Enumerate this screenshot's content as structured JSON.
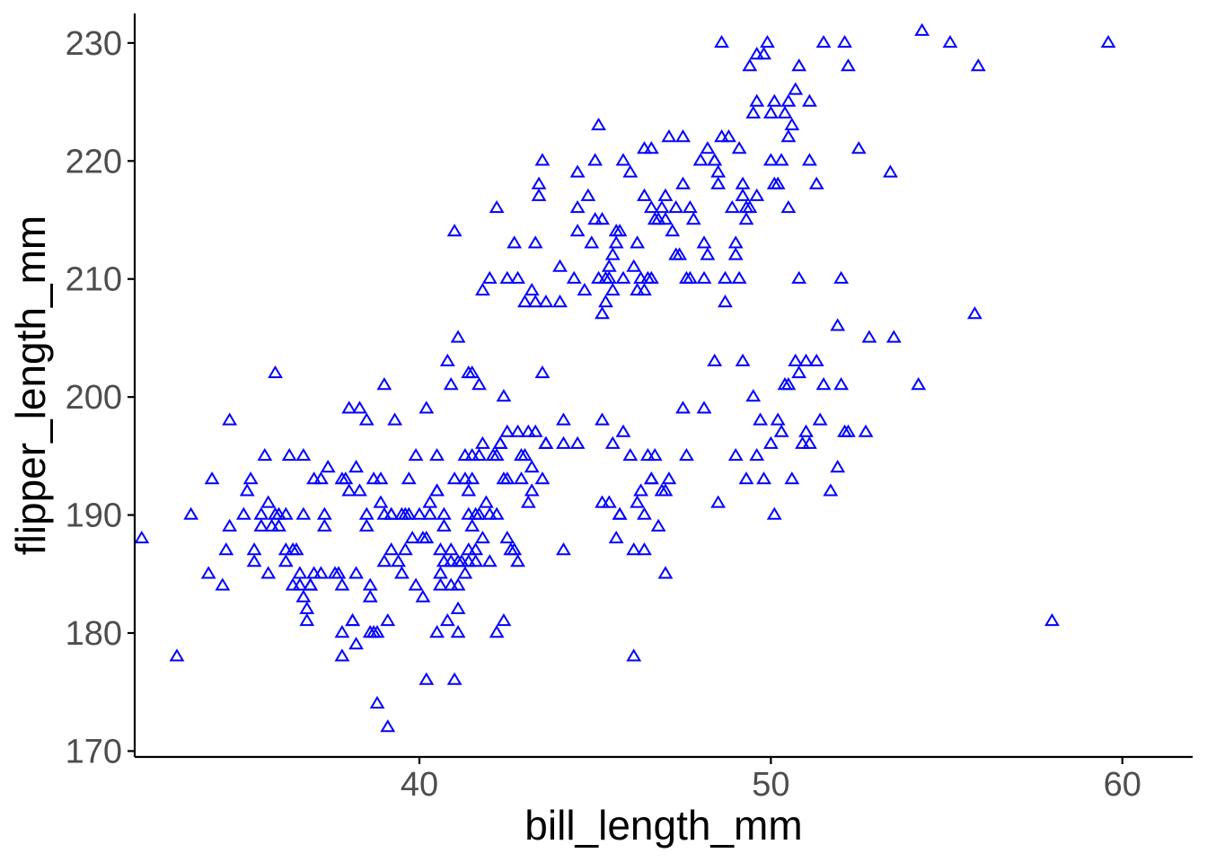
{
  "chart_data": {
    "type": "scatter",
    "title": "",
    "xlabel": "bill_length_mm",
    "ylabel": "flipper_length_mm",
    "xlim": [
      31.9,
      62.0
    ],
    "ylim": [
      169.5,
      232.5
    ],
    "xticks": [
      40,
      50,
      60
    ],
    "yticks": [
      170,
      180,
      190,
      200,
      210,
      220,
      230
    ],
    "grid": false,
    "marker": "triangle-open",
    "color": "#0000ff",
    "points": [
      [
        32.1,
        188
      ],
      [
        33.1,
        178
      ],
      [
        33.5,
        190
      ],
      [
        34.0,
        185
      ],
      [
        34.1,
        193
      ],
      [
        34.4,
        184
      ],
      [
        34.5,
        187
      ],
      [
        34.6,
        198
      ],
      [
        34.6,
        189
      ],
      [
        35.0,
        190
      ],
      [
        35.1,
        192
      ],
      [
        35.2,
        193
      ],
      [
        35.3,
        187
      ],
      [
        35.3,
        186
      ],
      [
        35.5,
        190
      ],
      [
        35.6,
        195
      ],
      [
        35.7,
        191
      ],
      [
        35.7,
        185
      ],
      [
        35.8,
        189
      ],
      [
        35.9,
        202
      ],
      [
        36.0,
        189
      ],
      [
        36.0,
        190
      ],
      [
        36.2,
        186
      ],
      [
        36.2,
        190
      ],
      [
        36.2,
        187
      ],
      [
        36.3,
        195
      ],
      [
        36.4,
        187
      ],
      [
        36.5,
        187
      ],
      [
        36.6,
        185
      ],
      [
        36.6,
        184
      ],
      [
        36.7,
        190
      ],
      [
        36.7,
        195
      ],
      [
        36.8,
        181
      ],
      [
        36.8,
        182
      ],
      [
        36.9,
        184
      ],
      [
        37.0,
        185
      ],
      [
        37.0,
        193
      ],
      [
        37.2,
        193
      ],
      [
        37.3,
        190
      ],
      [
        37.3,
        189
      ],
      [
        37.6,
        185
      ],
      [
        37.7,
        185
      ],
      [
        37.8,
        184
      ],
      [
        37.8,
        180
      ],
      [
        37.8,
        178
      ],
      [
        38.0,
        199
      ],
      [
        38.0,
        192
      ],
      [
        38.1,
        181
      ],
      [
        38.2,
        185
      ],
      [
        38.2,
        194
      ],
      [
        38.2,
        179
      ],
      [
        38.3,
        199
      ],
      [
        38.5,
        198
      ],
      [
        38.5,
        190
      ],
      [
        38.6,
        180
      ],
      [
        38.6,
        184
      ],
      [
        38.6,
        183
      ],
      [
        38.7,
        193
      ],
      [
        38.7,
        180
      ],
      [
        38.8,
        180
      ],
      [
        38.8,
        174
      ],
      [
        38.9,
        193
      ],
      [
        39.0,
        186
      ],
      [
        39.0,
        190
      ],
      [
        39.1,
        172
      ],
      [
        39.1,
        181
      ],
      [
        39.2,
        190
      ],
      [
        39.2,
        187
      ],
      [
        39.3,
        198
      ],
      [
        39.5,
        190
      ],
      [
        39.5,
        185
      ],
      [
        39.6,
        190
      ],
      [
        39.6,
        187
      ],
      [
        39.7,
        190
      ],
      [
        39.8,
        188
      ],
      [
        39.9,
        195
      ],
      [
        40.0,
        190
      ],
      [
        40.2,
        199
      ],
      [
        40.2,
        188
      ],
      [
        40.3,
        191
      ],
      [
        40.3,
        190
      ],
      [
        40.5,
        195
      ],
      [
        40.5,
        180
      ],
      [
        40.6,
        185
      ],
      [
        40.6,
        187
      ],
      [
        40.7,
        186
      ],
      [
        40.8,
        181
      ],
      [
        40.9,
        184
      ],
      [
        41.1,
        180
      ],
      [
        41.1,
        184
      ],
      [
        41.1,
        186
      ],
      [
        41.3,
        185
      ],
      [
        41.4,
        187
      ],
      [
        41.4,
        190
      ],
      [
        41.5,
        193
      ],
      [
        41.5,
        189
      ],
      [
        41.6,
        186
      ],
      [
        41.7,
        190
      ],
      [
        41.8,
        196
      ],
      [
        42.0,
        190
      ],
      [
        42.1,
        195
      ],
      [
        42.2,
        190
      ],
      [
        42.3,
        196
      ],
      [
        42.4,
        193
      ],
      [
        42.5,
        193
      ],
      [
        42.5,
        188
      ],
      [
        42.8,
        186
      ],
      [
        42.9,
        193
      ],
      [
        43.1,
        191
      ],
      [
        43.2,
        194
      ],
      [
        43.5,
        193
      ],
      [
        43.6,
        196
      ],
      [
        44.1,
        198
      ],
      [
        44.1,
        196
      ],
      [
        44.1,
        187
      ],
      [
        40.2,
        176
      ],
      [
        40.6,
        184
      ],
      [
        40.9,
        187
      ],
      [
        41.1,
        182
      ],
      [
        41.3,
        195
      ],
      [
        41.4,
        192
      ],
      [
        41.5,
        195
      ],
      [
        41.6,
        190
      ],
      [
        41.9,
        191
      ],
      [
        42.2,
        180
      ],
      [
        42.4,
        181
      ],
      [
        42.5,
        197
      ],
      [
        42.7,
        187
      ],
      [
        42.8,
        197
      ],
      [
        43.0,
        195
      ],
      [
        43.1,
        197
      ],
      [
        43.3,
        197
      ],
      [
        40.1,
        183
      ],
      [
        40.5,
        192
      ],
      [
        40.7,
        190
      ],
      [
        41.0,
        193
      ],
      [
        41.2,
        186
      ],
      [
        41.4,
        186
      ],
      [
        41.7,
        195
      ],
      [
        42.2,
        195
      ],
      [
        42.3,
        196
      ],
      [
        42.6,
        187
      ],
      [
        42.9,
        195
      ],
      [
        43.2,
        192
      ],
      [
        43.6,
        196
      ],
      [
        44.5,
        196
      ],
      [
        35.5,
        189
      ],
      [
        35.9,
        190
      ],
      [
        36.4,
        184
      ],
      [
        36.9,
        184
      ],
      [
        37.2,
        185
      ],
      [
        37.4,
        194
      ],
      [
        37.8,
        193
      ],
      [
        37.9,
        193
      ],
      [
        38.1,
        181
      ],
      [
        38.3,
        192
      ],
      [
        38.5,
        189
      ],
      [
        38.9,
        191
      ],
      [
        39.2,
        190
      ],
      [
        39.4,
        186
      ],
      [
        39.7,
        193
      ],
      [
        39.9,
        184
      ],
      [
        40.1,
        188
      ],
      [
        40.5,
        192
      ],
      [
        40.7,
        189
      ],
      [
        40.9,
        186
      ],
      [
        41.0,
        176
      ],
      [
        41.6,
        187
      ],
      [
        41.8,
        188
      ],
      [
        42.0,
        186
      ],
      [
        45.2,
        198
      ],
      [
        45.4,
        191
      ],
      [
        45.6,
        188
      ],
      [
        45.7,
        190
      ],
      [
        45.8,
        197
      ],
      [
        46.0,
        195
      ],
      [
        46.1,
        187
      ],
      [
        46.2,
        191
      ],
      [
        46.4,
        190
      ],
      [
        46.5,
        195
      ],
      [
        46.6,
        193
      ],
      [
        46.7,
        195
      ],
      [
        46.8,
        189
      ],
      [
        46.9,
        192
      ],
      [
        47.0,
        185
      ],
      [
        47.1,
        193
      ],
      [
        47.5,
        199
      ],
      [
        47.6,
        195
      ],
      [
        48.1,
        199
      ],
      [
        48.4,
        203
      ],
      [
        48.5,
        191
      ],
      [
        49.0,
        195
      ],
      [
        49.2,
        203
      ],
      [
        49.3,
        193
      ],
      [
        49.5,
        200
      ],
      [
        49.6,
        195
      ],
      [
        49.7,
        198
      ],
      [
        49.8,
        193
      ],
      [
        50.0,
        196
      ],
      [
        50.1,
        190
      ],
      [
        50.2,
        198
      ],
      [
        50.3,
        197
      ],
      [
        50.5,
        201
      ],
      [
        50.6,
        193
      ],
      [
        50.8,
        202
      ],
      [
        50.9,
        196
      ],
      [
        51.0,
        203
      ],
      [
        51.1,
        196
      ],
      [
        51.3,
        203
      ],
      [
        51.4,
        198
      ],
      [
        51.5,
        201
      ],
      [
        51.7,
        192
      ],
      [
        51.9,
        194
      ],
      [
        52.0,
        201
      ],
      [
        52.1,
        197
      ],
      [
        52.2,
        197
      ],
      [
        52.7,
        197
      ],
      [
        52.8,
        205
      ],
      [
        53.5,
        205
      ],
      [
        54.2,
        201
      ],
      [
        55.8,
        207
      ],
      [
        58.0,
        181
      ],
      [
        51.0,
        197
      ],
      [
        50.7,
        203
      ],
      [
        50.4,
        201
      ],
      [
        46.1,
        178
      ],
      [
        45.7,
        190
      ],
      [
        46.3,
        192
      ],
      [
        46.6,
        193
      ],
      [
        47.0,
        192
      ],
      [
        45.5,
        196
      ],
      [
        46.4,
        187
      ],
      [
        45.2,
        191
      ],
      [
        42.4,
        200
      ],
      [
        43.5,
        202
      ],
      [
        40.8,
        203
      ],
      [
        40.9,
        201
      ],
      [
        41.0,
        214
      ],
      [
        41.1,
        205
      ],
      [
        41.4,
        202
      ],
      [
        41.7,
        201
      ],
      [
        42.0,
        210
      ],
      [
        42.5,
        210
      ],
      [
        43.2,
        209
      ],
      [
        43.3,
        213
      ],
      [
        43.6,
        208
      ],
      [
        44.0,
        208
      ],
      [
        44.4,
        210
      ],
      [
        44.5,
        219
      ],
      [
        44.9,
        213
      ],
      [
        45.1,
        210
      ],
      [
        45.2,
        215
      ],
      [
        45.3,
        210
      ],
      [
        45.4,
        211
      ],
      [
        45.5,
        212
      ],
      [
        45.6,
        214
      ],
      [
        45.7,
        214
      ],
      [
        45.8,
        210
      ],
      [
        46.0,
        219
      ],
      [
        46.1,
        211
      ],
      [
        46.2,
        213
      ],
      [
        46.3,
        210
      ],
      [
        46.4,
        217
      ],
      [
        46.5,
        210
      ],
      [
        46.6,
        216
      ],
      [
        46.7,
        215
      ],
      [
        46.8,
        215
      ],
      [
        46.9,
        216
      ],
      [
        47.0,
        215
      ],
      [
        47.2,
        214
      ],
      [
        47.3,
        216
      ],
      [
        47.4,
        212
      ],
      [
        47.5,
        218
      ],
      [
        47.6,
        210
      ],
      [
        47.7,
        216
      ],
      [
        47.8,
        215
      ],
      [
        48.1,
        210
      ],
      [
        48.2,
        221
      ],
      [
        48.4,
        220
      ],
      [
        48.5,
        219
      ],
      [
        48.6,
        222
      ],
      [
        48.7,
        208
      ],
      [
        48.8,
        222
      ],
      [
        49.0,
        213
      ],
      [
        49.1,
        221
      ],
      [
        49.2,
        217
      ],
      [
        49.3,
        216
      ],
      [
        49.4,
        216
      ],
      [
        49.5,
        224
      ],
      [
        49.6,
        225
      ],
      [
        49.8,
        229
      ],
      [
        49.9,
        230
      ],
      [
        50.0,
        224
      ],
      [
        50.1,
        225
      ],
      [
        50.2,
        218
      ],
      [
        50.4,
        224
      ],
      [
        50.5,
        222
      ],
      [
        50.6,
        223
      ],
      [
        50.7,
        226
      ],
      [
        50.8,
        228
      ],
      [
        51.1,
        220
      ],
      [
        51.3,
        218
      ],
      [
        51.5,
        230
      ],
      [
        52.1,
        230
      ],
      [
        52.2,
        228
      ],
      [
        52.5,
        221
      ],
      [
        53.4,
        219
      ],
      [
        54.3,
        231
      ],
      [
        55.1,
        230
      ],
      [
        55.9,
        228
      ],
      [
        59.6,
        230
      ],
      [
        48.6,
        230
      ],
      [
        49.6,
        229
      ],
      [
        49.4,
        228
      ],
      [
        50.3,
        220
      ],
      [
        50.5,
        225
      ],
      [
        51.1,
        225
      ],
      [
        46.6,
        210
      ],
      [
        46.4,
        209
      ],
      [
        45.1,
        223
      ],
      [
        45.0,
        220
      ],
      [
        44.8,
        217
      ],
      [
        45.5,
        209
      ],
      [
        45.8,
        220
      ],
      [
        46.4,
        221
      ],
      [
        46.6,
        221
      ],
      [
        47.1,
        222
      ],
      [
        47.5,
        222
      ],
      [
        48.0,
        220
      ],
      [
        48.2,
        212
      ],
      [
        48.4,
        220
      ],
      [
        48.7,
        210
      ],
      [
        49.0,
        212
      ],
      [
        49.3,
        215
      ],
      [
        49.6,
        217
      ],
      [
        50.1,
        218
      ],
      [
        50.5,
        216
      ],
      [
        50.8,
        210
      ],
      [
        52.0,
        210
      ],
      [
        51.9,
        206
      ],
      [
        45.2,
        207
      ],
      [
        45.4,
        210
      ],
      [
        45.3,
        208
      ],
      [
        45.6,
        213
      ],
      [
        46.2,
        209
      ],
      [
        47.0,
        217
      ],
      [
        47.3,
        212
      ],
      [
        47.7,
        210
      ],
      [
        48.1,
        213
      ],
      [
        48.5,
        218
      ],
      [
        48.9,
        216
      ],
      [
        49.1,
        210
      ],
      [
        49.2,
        218
      ],
      [
        50.0,
        220
      ],
      [
        44.5,
        214
      ],
      [
        44.5,
        216
      ],
      [
        44.7,
        209
      ],
      [
        45.0,
        215
      ],
      [
        43.3,
        208
      ],
      [
        43.4,
        217
      ],
      [
        43.5,
        220
      ],
      [
        43.4,
        218
      ],
      [
        42.8,
        210
      ],
      [
        42.7,
        213
      ],
      [
        42.2,
        216
      ],
      [
        41.8,
        209
      ],
      [
        44.0,
        211
      ],
      [
        43.0,
        208
      ],
      [
        41.5,
        202
      ],
      [
        41.3,
        193
      ],
      [
        36.7,
        183
      ],
      [
        39.0,
        201
      ]
    ]
  }
}
